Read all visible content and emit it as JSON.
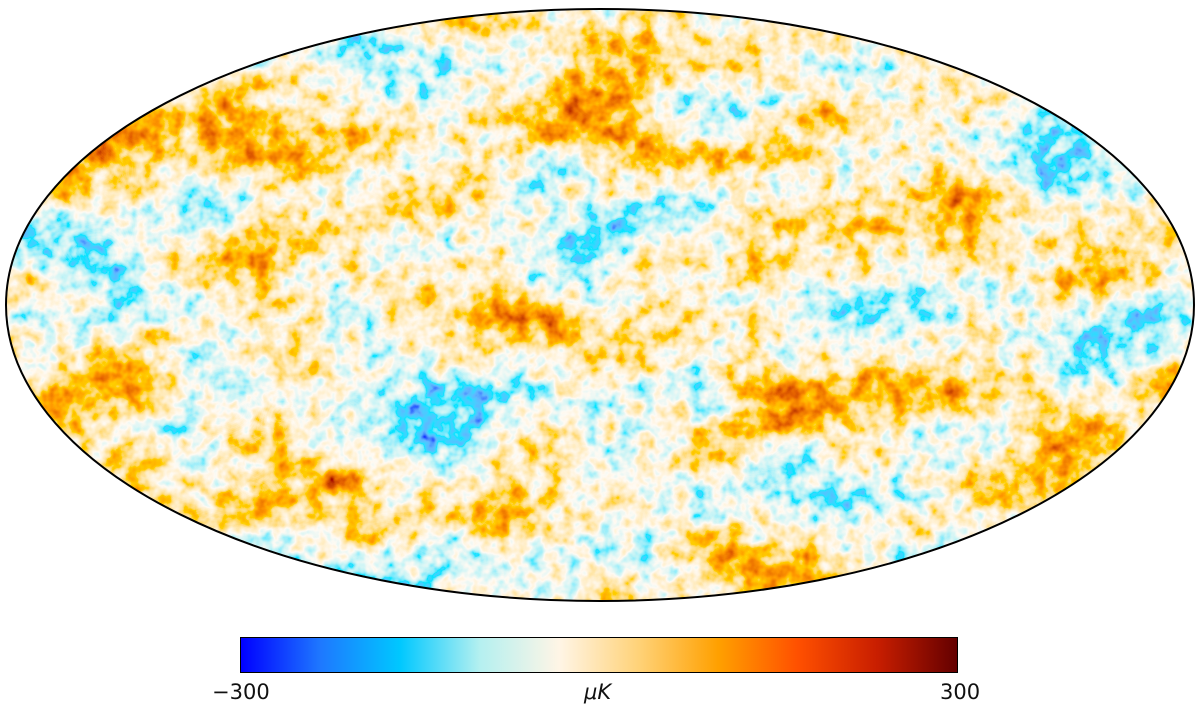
{
  "map": {
    "projection": "Mollweide",
    "colormap_stops": [
      "#0000ff",
      "#1e78ff",
      "#00c8ff",
      "#b4f0f0",
      "#fff5e6",
      "#ffd278",
      "#ffa000",
      "#ff5000",
      "#c81e00",
      "#640000"
    ]
  },
  "colorbar": {
    "min_label": "−300",
    "unit_label": "μK",
    "max_label": "300",
    "min_value": -300,
    "max_value": 300
  }
}
